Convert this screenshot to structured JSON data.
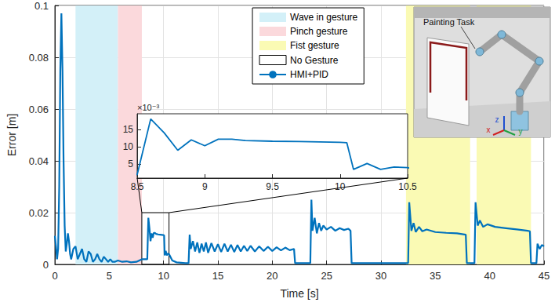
{
  "chart_data": {
    "type": "line",
    "xlabel": "Time [s]",
    "ylabel": "Error [m]",
    "xlim": [
      0,
      45
    ],
    "xticks": [
      0,
      5,
      10,
      15,
      20,
      25,
      30,
      35,
      40,
      45
    ],
    "ylim": [
      0,
      0.1
    ],
    "yticks": [
      0,
      0.02,
      0.04,
      0.06,
      0.08,
      0.1
    ],
    "grid": true,
    "legend": "top",
    "series": [
      {
        "name": "HMI+PID",
        "color": "#0072bd",
        "line_style": "solid",
        "x": [
          0,
          0.1,
          0.2,
          0.3,
          0.4,
          0.5,
          0.6,
          0.7,
          0.8,
          0.9,
          1,
          1.1,
          1.2,
          1.3,
          1.4,
          1.5,
          1.7,
          1.9,
          2.1,
          2.3,
          2.5,
          2.7,
          2.9,
          3.1,
          3.3,
          3.5,
          3.7,
          3.9,
          4.1,
          4.3,
          4.5,
          4.7,
          4.9,
          5.1,
          5.3,
          5.5,
          5.8,
          6.2,
          6.6,
          7,
          7.5,
          8,
          8.5,
          8.6,
          8.7,
          8.8,
          8.9,
          9,
          9.1,
          9.2,
          9.3,
          9.5,
          9.7,
          10,
          10.05,
          10.1,
          10.2,
          10.3,
          10.4,
          10.5,
          10.8,
          11.2,
          12,
          12.3,
          12.4,
          12.5,
          12.7,
          12.9,
          13.1,
          13.3,
          13.5,
          13.7,
          13.9,
          14.1,
          14.4,
          14.7,
          15,
          15.3,
          15.6,
          15.9,
          16.2,
          16.5,
          16.8,
          17.1,
          17.4,
          17.7,
          18,
          18.4,
          18.8,
          19.2,
          19.6,
          20,
          20.4,
          20.8,
          21.2,
          21.6,
          22,
          22.1,
          23.5,
          23.6,
          23.7,
          23.9,
          24.1,
          24.3,
          24.5,
          24.7,
          25,
          25.4,
          25.8,
          26.2,
          26.6,
          27,
          27.2,
          27.3,
          32.4,
          32.5,
          32.6,
          32.8,
          33,
          33.2,
          33.5,
          33.8,
          34.2,
          35,
          36,
          37,
          37.8,
          37.9,
          38.6,
          38.7,
          38.9,
          39.1,
          39.4,
          39.8,
          40.5,
          41.5,
          42.5,
          43.5,
          43.7,
          43.8,
          44.3,
          44.4,
          44.6,
          44.8,
          45
        ],
        "values": [
          0.011,
          0.007,
          0.002,
          0.006,
          0.03,
          0.075,
          0.097,
          0.075,
          0.04,
          0.015,
          0.005,
          0.008,
          0.012,
          0.009,
          0.004,
          0.002,
          0.006,
          0.007,
          0.002,
          0.004,
          0.006,
          0.002,
          0.001,
          0.005,
          0.004,
          0.001,
          0.002,
          0.004,
          0.002,
          0.001,
          0.003,
          0.002,
          0.001,
          0.002,
          0.001,
          0.001,
          0.0015,
          0.001,
          0.0012,
          0.0008,
          0.001,
          0.002,
          0.002,
          0.018,
          0.014,
          0.009,
          0.012,
          0.0103,
          0.0122,
          0.0122,
          0.0118,
          0.0116,
          0.0115,
          0.0113,
          0.0112,
          0.0035,
          0.0052,
          0.0035,
          0.0042,
          0.004,
          0.0015,
          0.0008,
          0.0005,
          0.0005,
          0.0115,
          0.006,
          0.009,
          0.005,
          0.0085,
          0.0045,
          0.008,
          0.005,
          0.0085,
          0.0045,
          0.0082,
          0.005,
          0.0078,
          0.0048,
          0.008,
          0.005,
          0.0076,
          0.0048,
          0.0075,
          0.005,
          0.0072,
          0.0052,
          0.0072,
          0.005,
          0.007,
          0.0052,
          0.0068,
          0.0052,
          0.0066,
          0.0054,
          0.0065,
          0.0055,
          0.006,
          0.0005,
          0.0005,
          0.025,
          0.013,
          0.018,
          0.012,
          0.016,
          0.013,
          0.015,
          0.0135,
          0.0145,
          0.013,
          0.014,
          0.0133,
          0.0138,
          0.013,
          0.0005,
          0.0005,
          0.0005,
          0.024,
          0.013,
          0.016,
          0.0125,
          0.0145,
          0.0128,
          0.0135,
          0.0125,
          0.0122,
          0.012,
          0.0115,
          0.0005,
          0.0005,
          0.024,
          0.015,
          0.017,
          0.0145,
          0.0155,
          0.0145,
          0.014,
          0.0135,
          0.013,
          0.0128,
          0.0005,
          0.0005,
          0.008,
          0.006,
          0.0075,
          0.007
        ]
      }
    ],
    "regions": [
      {
        "name": "Wave in gesture",
        "color": "#d3f0f8",
        "intervals": [
          [
            1.9,
            5.8
          ]
        ]
      },
      {
        "name": "Pinch gesture",
        "color": "#fbd9dc",
        "intervals": [
          [
            5.8,
            8
          ]
        ]
      },
      {
        "name": "Fist gesture",
        "color": "#fafab4",
        "intervals": [
          [
            32.3,
            38.2
          ],
          [
            38.8,
            43.8
          ]
        ]
      },
      {
        "name": "No Gesture",
        "color": "#ffffff",
        "intervals": []
      }
    ],
    "zoom": {
      "x": [
        8,
        10.5
      ],
      "y": [
        0,
        0.02
      ]
    },
    "inset": {
      "xlim": [
        8.5,
        10.5
      ],
      "xticks": [
        8.5,
        9,
        9.5,
        10,
        10.5
      ],
      "ylim": [
        0.001,
        0.0195
      ],
      "yticks": [
        {
          "value": 0.005,
          "label": "5"
        },
        {
          "value": 0.01,
          "label": "10"
        },
        {
          "value": 0.015,
          "label": "15"
        }
      ],
      "annotation": "×10⁻³"
    },
    "image": {
      "title": "Painting Task",
      "axis_labels": [
        "z",
        "x",
        "y"
      ]
    }
  }
}
